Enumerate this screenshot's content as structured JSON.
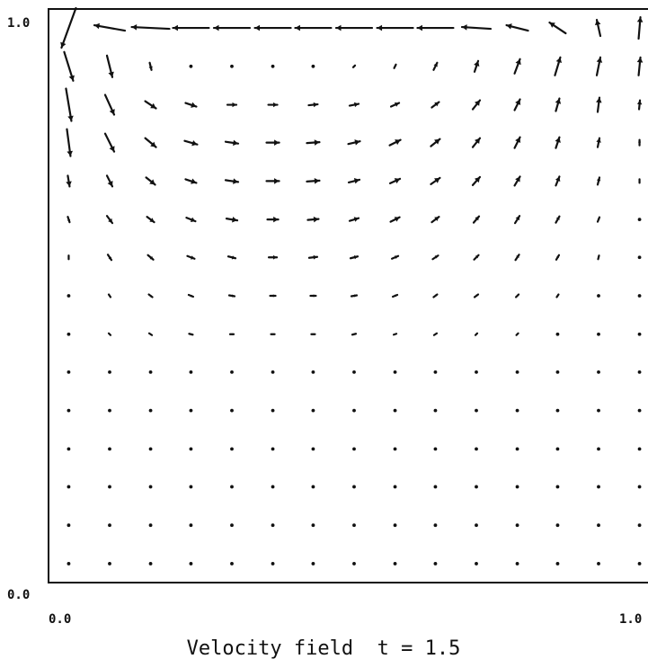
{
  "chart_data": {
    "type": "vector-field",
    "title": "Velocity field  t = 1.5",
    "xlim": [
      0.0,
      1.0
    ],
    "ylim": [
      0.0,
      1.0
    ],
    "x_tick_labels": [
      "0.0",
      "1.0"
    ],
    "y_tick_labels": [
      "0.0",
      "1.0"
    ],
    "grid": false,
    "legend": "none",
    "marker_color": "#111111",
    "x": [
      0.033,
      0.1,
      0.167,
      0.233,
      0.3,
      0.367,
      0.433,
      0.5,
      0.567,
      0.633,
      0.7,
      0.767,
      0.833,
      0.9,
      0.967
    ],
    "y": [
      0.967,
      0.9,
      0.833,
      0.767,
      0.7,
      0.633,
      0.567,
      0.5,
      0.433,
      0.367,
      0.3,
      0.233,
      0.167,
      0.1,
      0.033
    ],
    "vectors_top_to_bottom": [
      [
        [
          -0.8,
          -2.2
        ],
        [
          -1.7,
          0.3
        ],
        [
          -2.1,
          0.1
        ],
        [
          -2.0,
          0.0
        ],
        [
          -2.0,
          0.0
        ],
        [
          -2.0,
          0.0
        ],
        [
          -2.0,
          0.0
        ],
        [
          -2.0,
          0.0
        ],
        [
          -2.0,
          0.0
        ],
        [
          -2.0,
          0.0
        ],
        [
          -1.6,
          0.1
        ],
        [
          -1.2,
          0.3
        ],
        [
          -0.9,
          0.6
        ],
        [
          -0.2,
          0.9
        ],
        [
          0.1,
          1.2
        ]
      ],
      [
        [
          0.5,
          -1.6
        ],
        [
          0.3,
          -1.2
        ],
        [
          0.1,
          -0.4
        ],
        [
          0.0,
          0.0
        ],
        [
          0.0,
          0.0
        ],
        [
          0.05,
          0.0
        ],
        [
          0.1,
          0.05
        ],
        [
          0.1,
          0.1
        ],
        [
          0.1,
          0.2
        ],
        [
          0.2,
          0.4
        ],
        [
          0.2,
          0.6
        ],
        [
          0.3,
          0.8
        ],
        [
          0.3,
          1.0
        ],
        [
          0.2,
          1.0
        ],
        [
          0.1,
          1.0
        ]
      ],
      [
        [
          0.3,
          -1.8
        ],
        [
          0.5,
          -1.1
        ],
        [
          0.6,
          -0.4
        ],
        [
          0.6,
          -0.2
        ],
        [
          0.5,
          0.0
        ],
        [
          0.5,
          0.0
        ],
        [
          0.5,
          0.05
        ],
        [
          0.5,
          0.1
        ],
        [
          0.45,
          0.2
        ],
        [
          0.4,
          0.3
        ],
        [
          0.4,
          0.5
        ],
        [
          0.3,
          0.6
        ],
        [
          0.2,
          0.7
        ],
        [
          0.1,
          0.8
        ],
        [
          0.05,
          0.5
        ]
      ],
      [
        [
          0.2,
          -1.5
        ],
        [
          0.5,
          -1.0
        ],
        [
          0.6,
          -0.5
        ],
        [
          0.7,
          -0.2
        ],
        [
          0.7,
          -0.1
        ],
        [
          0.7,
          0.0
        ],
        [
          0.7,
          0.05
        ],
        [
          0.65,
          0.15
        ],
        [
          0.6,
          0.3
        ],
        [
          0.5,
          0.4
        ],
        [
          0.4,
          0.5
        ],
        [
          0.3,
          0.6
        ],
        [
          0.2,
          0.6
        ],
        [
          0.1,
          0.5
        ],
        [
          0.0,
          0.3
        ]
      ],
      [
        [
          0.1,
          -0.6
        ],
        [
          0.3,
          -0.6
        ],
        [
          0.5,
          -0.4
        ],
        [
          0.6,
          -0.2
        ],
        [
          0.7,
          -0.1
        ],
        [
          0.7,
          0.0
        ],
        [
          0.7,
          0.05
        ],
        [
          0.6,
          0.15
        ],
        [
          0.55,
          0.25
        ],
        [
          0.5,
          0.35
        ],
        [
          0.4,
          0.45
        ],
        [
          0.3,
          0.5
        ],
        [
          0.2,
          0.5
        ],
        [
          0.1,
          0.4
        ],
        [
          0.0,
          0.2
        ]
      ],
      [
        [
          0.1,
          -0.3
        ],
        [
          0.3,
          -0.4
        ],
        [
          0.4,
          -0.3
        ],
        [
          0.5,
          -0.2
        ],
        [
          0.6,
          -0.1
        ],
        [
          0.6,
          0.0
        ],
        [
          0.6,
          0.05
        ],
        [
          0.5,
          0.15
        ],
        [
          0.5,
          0.25
        ],
        [
          0.4,
          0.3
        ],
        [
          0.3,
          0.35
        ],
        [
          0.25,
          0.4
        ],
        [
          0.2,
          0.35
        ],
        [
          0.1,
          0.25
        ],
        [
          0.0,
          0.1
        ]
      ],
      [
        [
          0.0,
          -0.2
        ],
        [
          0.2,
          -0.3
        ],
        [
          0.3,
          -0.25
        ],
        [
          0.4,
          -0.15
        ],
        [
          0.4,
          -0.1
        ],
        [
          0.45,
          0.0
        ],
        [
          0.45,
          0.05
        ],
        [
          0.4,
          0.1
        ],
        [
          0.35,
          0.15
        ],
        [
          0.3,
          0.2
        ],
        [
          0.25,
          0.25
        ],
        [
          0.2,
          0.3
        ],
        [
          0.15,
          0.25
        ],
        [
          0.05,
          0.2
        ],
        [
          0.0,
          0.1
        ]
      ],
      [
        [
          0.0,
          -0.1
        ],
        [
          0.1,
          -0.15
        ],
        [
          0.2,
          -0.15
        ],
        [
          0.25,
          -0.1
        ],
        [
          0.3,
          -0.05
        ],
        [
          0.3,
          0.0
        ],
        [
          0.3,
          0.0
        ],
        [
          0.3,
          0.05
        ],
        [
          0.25,
          0.1
        ],
        [
          0.2,
          0.15
        ],
        [
          0.2,
          0.15
        ],
        [
          0.15,
          0.15
        ],
        [
          0.1,
          0.15
        ],
        [
          0.05,
          0.1
        ],
        [
          0.0,
          0.05
        ]
      ],
      [
        [
          0.0,
          -0.05
        ],
        [
          0.1,
          -0.1
        ],
        [
          0.15,
          -0.1
        ],
        [
          0.2,
          -0.05
        ],
        [
          0.2,
          0.0
        ],
        [
          0.2,
          0.0
        ],
        [
          0.2,
          0.0
        ],
        [
          0.2,
          0.05
        ],
        [
          0.15,
          0.05
        ],
        [
          0.15,
          0.1
        ],
        [
          0.1,
          0.1
        ],
        [
          0.1,
          0.1
        ],
        [
          0.05,
          0.1
        ],
        [
          0.0,
          0.05
        ],
        [
          0.0,
          0.0
        ]
      ],
      [
        [
          0.0,
          0.0
        ],
        [
          0.05,
          -0.05
        ],
        [
          0.1,
          -0.05
        ],
        [
          0.1,
          0.0
        ],
        [
          0.1,
          0.0
        ],
        [
          0.1,
          0.0
        ],
        [
          0.1,
          0.0
        ],
        [
          0.1,
          0.0
        ],
        [
          0.1,
          0.05
        ],
        [
          0.1,
          0.05
        ],
        [
          0.05,
          0.05
        ],
        [
          0.05,
          0.05
        ],
        [
          0.0,
          0.05
        ],
        [
          0.0,
          0.0
        ],
        [
          0.0,
          0.0
        ]
      ],
      [
        [
          0.0,
          0.0
        ],
        [
          0.0,
          0.0
        ],
        [
          0.05,
          0.0
        ],
        [
          0.05,
          0.0
        ],
        [
          0.05,
          0.0
        ],
        [
          0.05,
          0.0
        ],
        [
          0.05,
          0.0
        ],
        [
          0.05,
          0.0
        ],
        [
          0.05,
          0.0
        ],
        [
          0.05,
          0.0
        ],
        [
          0.05,
          0.0
        ],
        [
          0.0,
          0.05
        ],
        [
          0.0,
          0.0
        ],
        [
          0.0,
          0.0
        ],
        [
          0.0,
          0.0
        ]
      ],
      [
        [
          0.0,
          0.0
        ],
        [
          0.0,
          0.0
        ],
        [
          0.0,
          0.0
        ],
        [
          0.0,
          0.0
        ],
        [
          0.0,
          0.0
        ],
        [
          0.0,
          0.0
        ],
        [
          0.0,
          0.0
        ],
        [
          0.0,
          0.0
        ],
        [
          0.0,
          0.0
        ],
        [
          0.0,
          0.0
        ],
        [
          0.0,
          0.0
        ],
        [
          0.0,
          0.0
        ],
        [
          0.0,
          0.0
        ],
        [
          0.0,
          0.0
        ],
        [
          0.0,
          0.0
        ]
      ],
      [
        [
          0.0,
          0.0
        ],
        [
          0.0,
          0.0
        ],
        [
          0.0,
          0.0
        ],
        [
          0.0,
          0.0
        ],
        [
          0.0,
          0.0
        ],
        [
          0.0,
          0.0
        ],
        [
          0.0,
          0.0
        ],
        [
          0.0,
          0.0
        ],
        [
          0.0,
          0.0
        ],
        [
          0.0,
          0.0
        ],
        [
          0.0,
          0.0
        ],
        [
          0.0,
          0.0
        ],
        [
          0.0,
          0.0
        ],
        [
          0.0,
          0.0
        ],
        [
          0.0,
          0.0
        ]
      ],
      [
        [
          0.0,
          0.0
        ],
        [
          0.0,
          0.0
        ],
        [
          0.0,
          0.0
        ],
        [
          0.0,
          0.0
        ],
        [
          0.0,
          0.0
        ],
        [
          0.0,
          0.0
        ],
        [
          0.0,
          0.0
        ],
        [
          0.0,
          0.0
        ],
        [
          0.0,
          0.0
        ],
        [
          0.0,
          0.0
        ],
        [
          0.0,
          0.0
        ],
        [
          0.0,
          0.0
        ],
        [
          0.0,
          0.0
        ],
        [
          0.0,
          0.0
        ],
        [
          0.0,
          0.0
        ]
      ],
      [
        [
          0.0,
          0.0
        ],
        [
          0.0,
          0.0
        ],
        [
          0.0,
          0.0
        ],
        [
          0.0,
          0.0
        ],
        [
          0.0,
          0.0
        ],
        [
          0.0,
          0.0
        ],
        [
          0.0,
          0.0
        ],
        [
          0.0,
          0.0
        ],
        [
          0.0,
          0.0
        ],
        [
          0.0,
          0.0
        ],
        [
          0.0,
          0.0
        ],
        [
          0.0,
          0.0
        ],
        [
          0.0,
          0.0
        ],
        [
          0.0,
          0.0
        ],
        [
          0.0,
          0.0
        ]
      ]
    ]
  }
}
